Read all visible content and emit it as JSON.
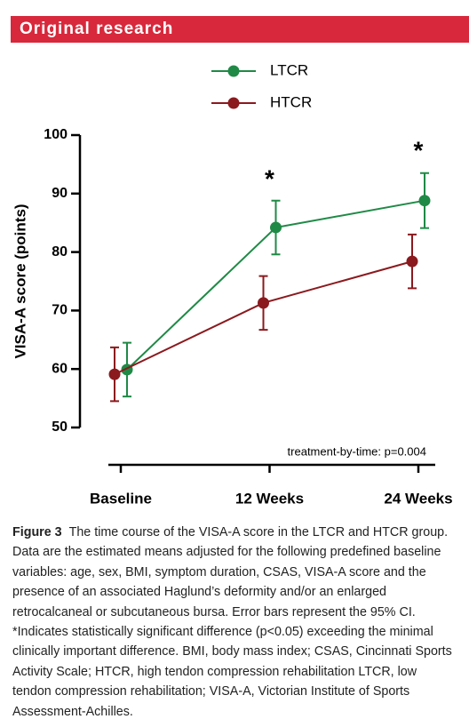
{
  "header": {
    "section": "Original research"
  },
  "chart_data": {
    "type": "line",
    "ylabel": "VISA-A score (points)",
    "categories": [
      "Baseline",
      "12 Weeks",
      "24 Weeks"
    ],
    "series": [
      {
        "name": "LTCR",
        "color": "#1f8a46",
        "values": [
          59.9,
          84.2,
          88.8
        ],
        "errors": [
          4.6,
          4.6,
          4.7
        ]
      },
      {
        "name": "HTCR",
        "color": "#8b1a1e",
        "values": [
          59.1,
          71.3,
          78.4
        ],
        "errors": [
          4.6,
          4.6,
          4.6
        ]
      }
    ],
    "ylim": [
      50,
      100
    ],
    "yticks": [
      50,
      60,
      70,
      80,
      90,
      100
    ],
    "annotations": [
      {
        "text": "*",
        "x": "12 Weeks"
      },
      {
        "text": "*",
        "x": "24 Weeks"
      }
    ],
    "note": "treatment-by-time: p=0.004"
  },
  "caption": {
    "label": "Figure 3",
    "text": "The time course of the VISA-A score in the LTCR and HTCR group. Data are the estimated means adjusted for the following predefined baseline variables: age, sex, BMI, symptom duration, CSAS, VISA-A score and the presence of an associated Haglund’s deformity and/or an enlarged retrocalcaneal or subcutaneous bursa. Error bars represent the 95% CI. *Indicates statistically significant difference (p<0.05) exceeding the minimal clinically important difference. BMI, body mass index; CSAS, Cincinnati Sports Activity Scale; HTCR, high tendon compression rehabilitation LTCR, low tendon compression rehabilitation; VISA-A, Victorian Institute of Sports Assessment-Achilles."
  }
}
